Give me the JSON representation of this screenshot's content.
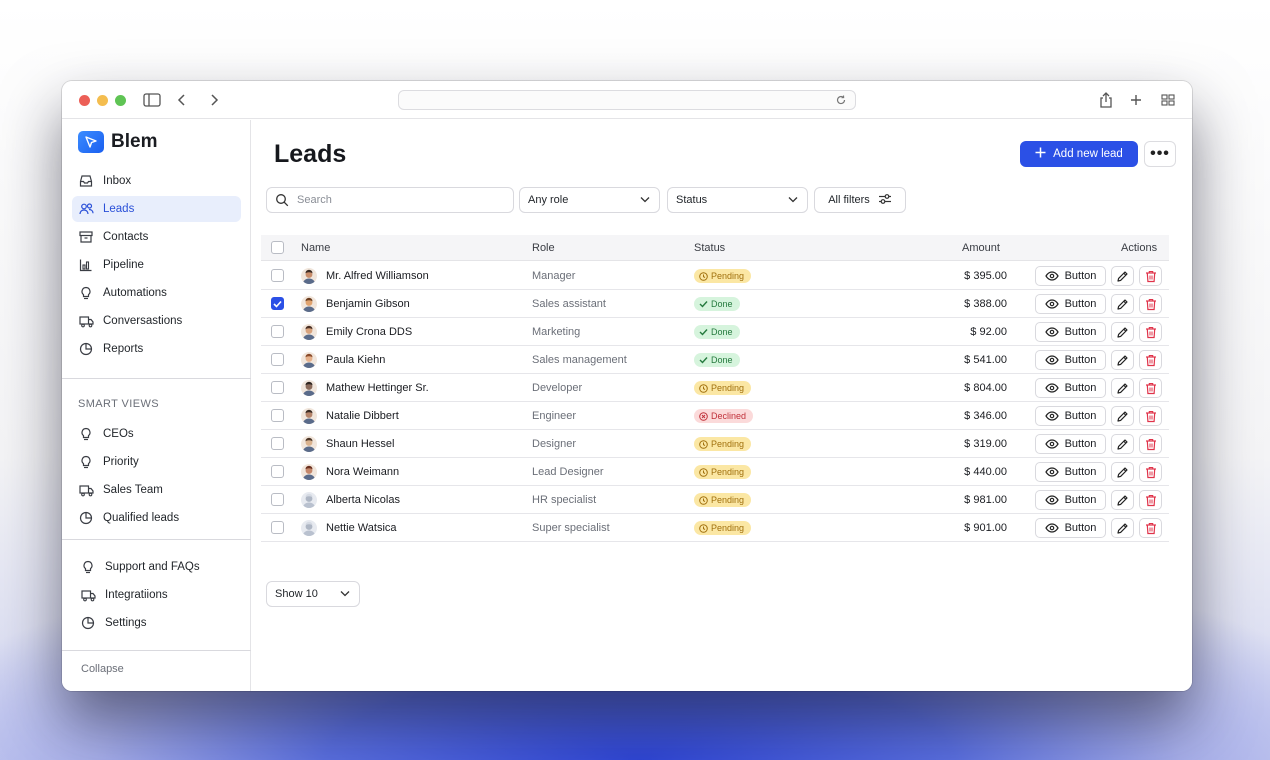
{
  "brand": {
    "name": "Blem"
  },
  "sidebar": {
    "items": [
      {
        "label": "Inbox",
        "icon": "inbox-icon"
      },
      {
        "label": "Leads",
        "icon": "users-icon",
        "active": true
      },
      {
        "label": "Contacts",
        "icon": "archive-icon"
      },
      {
        "label": "Pipeline",
        "icon": "chart-icon"
      },
      {
        "label": "Automations",
        "icon": "bulb-icon"
      },
      {
        "label": "Conversastions",
        "icon": "truck-icon"
      },
      {
        "label": "Reports",
        "icon": "pie-icon"
      }
    ],
    "smart_views_label": "SMART VIEWS",
    "smart_views": [
      {
        "label": "CEOs",
        "icon": "bulb-icon"
      },
      {
        "label": "Priority",
        "icon": "bulb-icon"
      },
      {
        "label": "Sales Team",
        "icon": "truck-icon"
      },
      {
        "label": "Qualified leads",
        "icon": "pie-icon"
      }
    ],
    "bottom_items": [
      {
        "label": "Support and FAQs",
        "icon": "bulb-icon"
      },
      {
        "label": "Integratiions",
        "icon": "truck-icon"
      },
      {
        "label": "Settings",
        "icon": "pie-icon"
      }
    ],
    "collapse_label": "Collapse"
  },
  "header": {
    "title": "Leads",
    "add_label": "Add new lead",
    "more_label": "•••"
  },
  "filters": {
    "search_placeholder": "Search",
    "role_value": "Any role",
    "status_value": "Status",
    "all_filters_label": "All filters"
  },
  "table": {
    "columns": {
      "name": "Name",
      "role": "Role",
      "status": "Status",
      "amount": "Amount",
      "actions": "Actions"
    },
    "action_label": "Button",
    "rows": [
      {
        "name": "Mr. Alfred Williamson",
        "role": "Manager",
        "status": "Pending",
        "amount": "$ 395.00",
        "checked": false
      },
      {
        "name": "Benjamin Gibson",
        "role": "Sales assistant",
        "status": "Done",
        "amount": "$ 388.00",
        "checked": true
      },
      {
        "name": "Emily Crona DDS",
        "role": "Marketing",
        "status": "Done",
        "amount": "$ 92.00",
        "checked": false
      },
      {
        "name": "Paula Kiehn",
        "role": "Sales management",
        "status": "Done",
        "amount": "$ 541.00",
        "checked": false
      },
      {
        "name": "Mathew Hettinger Sr.",
        "role": "Developer",
        "status": "Pending",
        "amount": "$ 804.00",
        "checked": false
      },
      {
        "name": "Natalie Dibbert",
        "role": "Engineer",
        "status": "Declined",
        "amount": "$ 346.00",
        "checked": false
      },
      {
        "name": "Shaun Hessel",
        "role": "Designer",
        "status": "Pending",
        "amount": "$ 319.00",
        "checked": false
      },
      {
        "name": "Nora Weimann",
        "role": "Lead Designer",
        "status": "Pending",
        "amount": "$ 440.00",
        "checked": false
      },
      {
        "name": "Alberta Nicolas",
        "role": "HR specialist",
        "status": "Pending",
        "amount": "$ 981.00",
        "checked": false
      },
      {
        "name": "Nettie Watsica",
        "role": "Super specialist",
        "status": "Pending",
        "amount": "$ 901.00",
        "checked": false
      }
    ]
  },
  "pagination": {
    "show_value": "Show 10"
  },
  "colors": {
    "accent": "#2b50e6",
    "pending_bg": "#fbe7a4",
    "done_bg": "#d6f4dd",
    "declined_bg": "#fbdada",
    "delete_red": "#e0334a"
  }
}
